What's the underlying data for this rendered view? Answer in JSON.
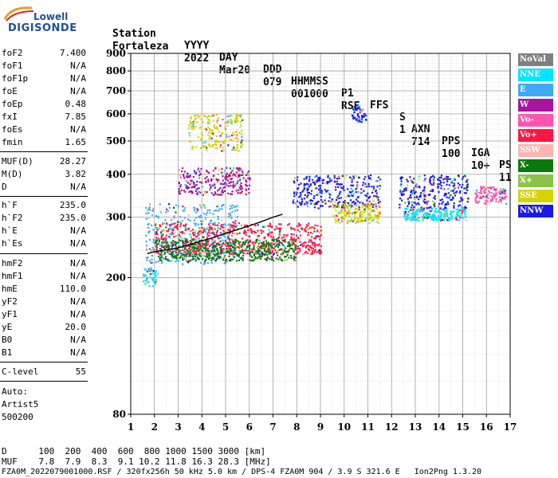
{
  "logo": {
    "line1": "Lowell",
    "line2": "DIGISONDE"
  },
  "header": {
    "row1": [
      "Station",
      "YYYY",
      "DAY",
      "DDD",
      "HHMMSS",
      "P1",
      "FFS",
      "S",
      "AXN",
      "PPS",
      "IGA",
      "PS"
    ],
    "row2": [
      "Fortaleza",
      "2022",
      "Mar20",
      "079",
      "001000",
      "RSF",
      "",
      "1",
      "714",
      "100",
      "10+",
      "11"
    ]
  },
  "params_group1": [
    {
      "name": "foF2",
      "value": "7.400"
    },
    {
      "name": "foF1",
      "value": "N/A"
    },
    {
      "name": "foF1p",
      "value": "N/A"
    },
    {
      "name": "foE",
      "value": "N/A"
    },
    {
      "name": "foEp",
      "value": "0.48"
    },
    {
      "name": "fxI",
      "value": "7.85"
    },
    {
      "name": "foEs",
      "value": "N/A"
    },
    {
      "name": "fmin",
      "value": "1.65"
    }
  ],
  "params_group2": [
    {
      "name": "MUF(D)",
      "value": "28.27"
    },
    {
      "name": "M(D)",
      "value": "3.82"
    },
    {
      "name": "D",
      "value": "N/A"
    }
  ],
  "params_group3": [
    {
      "name": "h`F",
      "value": "235.0"
    },
    {
      "name": "h`F2",
      "value": "235.0"
    },
    {
      "name": "h`E",
      "value": "N/A"
    },
    {
      "name": "h`Es",
      "value": "N/A"
    }
  ],
  "params_group4": [
    {
      "name": "hmF2",
      "value": "N/A"
    },
    {
      "name": "hmF1",
      "value": "N/A"
    },
    {
      "name": "hmE",
      "value": "110.0"
    },
    {
      "name": "yF2",
      "value": "N/A"
    },
    {
      "name": "yF1",
      "value": "N/A"
    },
    {
      "name": "yE",
      "value": "20.0"
    },
    {
      "name": "B0",
      "value": "N/A"
    },
    {
      "name": "B1",
      "value": "N/A"
    }
  ],
  "c_level": {
    "name": "C-level",
    "value": "55"
  },
  "autoscale": [
    "Auto:",
    "Artist5",
    "500200"
  ],
  "footer": {
    "d_row": "D      100  200  400  600  800 1000 1500 3000 [km]",
    "muf_row": "MUF    7.8  7.9  8.3  9.1 10.2 11.8 16.3 28.3 [MHz]",
    "file_row": "FZA0M_2022079001000.RSF / 320fx256h 50 kHz 5.0 km / DPS-4 FZA0M 904 / 3.9 S 321.6 E   Ion2Png 1.3.20"
  },
  "legend": [
    {
      "label": "NoVal",
      "color": "#808080"
    },
    {
      "label": "NNE",
      "color": "#00e5ff"
    },
    {
      "label": "E",
      "color": "#3fa9f5"
    },
    {
      "label": "W",
      "color": "#a8139f"
    },
    {
      "label": "Vo-",
      "color": "#ff55b0"
    },
    {
      "label": "Vo+",
      "color": "#ff1744"
    },
    {
      "label": "SSW",
      "color": "#ffb3b3"
    },
    {
      "label": "X-",
      "color": "#0a7a0a"
    },
    {
      "label": "X+",
      "color": "#8bc34a"
    },
    {
      "label": "SSE",
      "color": "#d4d400"
    },
    {
      "label": "NNW",
      "color": "#1a1ae6"
    }
  ],
  "chart_data": {
    "type": "scatter",
    "xlabel": "",
    "ylabel": "",
    "xlim": [
      1,
      17
    ],
    "ylim": [
      80,
      900
    ],
    "x_ticks": [
      "1",
      "2",
      "3",
      "4",
      "5",
      "6",
      "7",
      "8",
      "9",
      "10",
      "11",
      "12",
      "13",
      "14",
      "15",
      "16",
      "17"
    ],
    "y_ticks": [
      "80",
      "200",
      "300",
      "400",
      "500",
      "600",
      "700",
      "800",
      "900"
    ],
    "y_log": true,
    "grid": true,
    "trace": {
      "name": "",
      "color": "#000000",
      "x": [
        1.7,
        2.0,
        2.5,
        3.0,
        3.5,
        4.0,
        4.5,
        5.0,
        5.5,
        6.0,
        6.5,
        7.0,
        7.4
      ],
      "y": [
        235,
        238,
        241,
        244,
        250,
        256,
        262,
        269,
        276,
        283,
        291,
        300,
        306
      ]
    },
    "regions": [
      {
        "series": "NNE",
        "x": [
          1.5,
          2.1
        ],
        "y": [
          190,
          215
        ]
      },
      {
        "series": "E",
        "x": [
          1.6,
          5.5
        ],
        "y": [
          220,
          330
        ]
      },
      {
        "series": "W",
        "x": [
          3.0,
          6.0
        ],
        "y": [
          350,
          420
        ]
      },
      {
        "series": "SSE",
        "x": [
          3.4,
          5.7
        ],
        "y": [
          470,
          600
        ]
      },
      {
        "series": "NNW",
        "x": [
          7.8,
          11.5
        ],
        "y": [
          320,
          400
        ]
      },
      {
        "series": "Vo+",
        "x": [
          2.0,
          9.0
        ],
        "y": [
          235,
          290
        ]
      },
      {
        "series": "X-",
        "x": [
          2.0,
          8.0
        ],
        "y": [
          225,
          260
        ]
      },
      {
        "series": "NNE",
        "x": [
          12.5,
          15.1
        ],
        "y": [
          295,
          320
        ]
      },
      {
        "series": "NNW",
        "x": [
          12.3,
          15.2
        ],
        "y": [
          320,
          400
        ]
      },
      {
        "series": "SSE",
        "x": [
          9.5,
          11.5
        ],
        "y": [
          290,
          330
        ]
      },
      {
        "series": "NNW",
        "x": [
          10.3,
          10.9
        ],
        "y": [
          570,
          640
        ]
      },
      {
        "series": "Vo-",
        "x": [
          15.5,
          16.8
        ],
        "y": [
          330,
          370
        ]
      }
    ]
  }
}
